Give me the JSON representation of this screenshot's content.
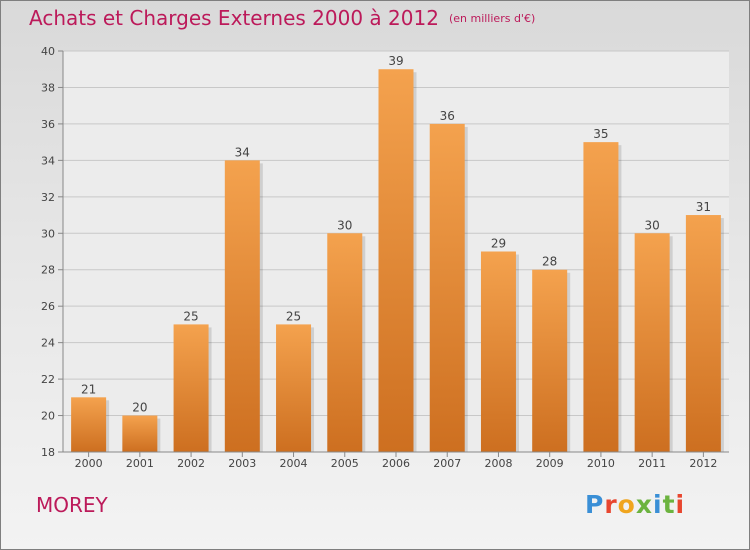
{
  "header": {
    "title": "Achats et Charges Externes 2000 à 2012",
    "subtitle": "(en milliers d'€)"
  },
  "footer": {
    "place": "MOREY",
    "brand": "Proxiti",
    "brand_colors": [
      "#3a8fd6",
      "#e8462f",
      "#f0a51e",
      "#6cb33f"
    ]
  },
  "colors": {
    "bar_light": "#f4a24e",
    "bar_dark": "#cd6f20",
    "title": "#bc1a5a"
  },
  "chart_data": {
    "type": "bar",
    "title": "Achats et Charges Externes 2000 à 2012",
    "subtitle": "(en milliers d'€)",
    "categories": [
      "2000",
      "2001",
      "2002",
      "2003",
      "2004",
      "2005",
      "2006",
      "2007",
      "2008",
      "2009",
      "2010",
      "2011",
      "2012"
    ],
    "values": [
      21,
      20,
      25,
      34,
      25,
      30,
      39,
      36,
      29,
      28,
      35,
      30,
      31
    ],
    "ylim": [
      18,
      40
    ],
    "yticks": [
      18,
      20,
      22,
      24,
      26,
      28,
      30,
      32,
      34,
      36,
      38,
      40
    ],
    "grid": true,
    "legend": "none"
  }
}
